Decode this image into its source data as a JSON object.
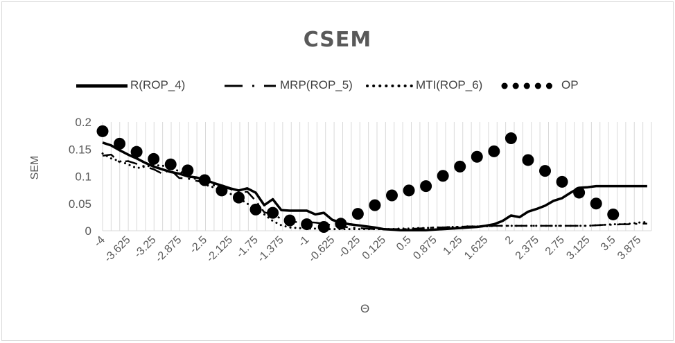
{
  "chart_data": {
    "type": "line",
    "title": "CSEM",
    "xlabel": "Θ",
    "ylabel": "SEM",
    "ylim": [
      0,
      0.2
    ],
    "yticks": [
      "0",
      "0.05",
      "0.1",
      "0.15",
      "0.2"
    ],
    "xtick_labels": [
      "-4",
      "-3.625",
      "-3.25",
      "-2.875",
      "-2.5",
      "-2.125",
      "-1.75",
      "-1.375",
      "-1",
      "-0.625",
      "-0.25",
      "0.125",
      "0.5",
      "0.875",
      "1.25",
      "1.625",
      "2",
      "2.375",
      "2.75",
      "3.125",
      "3.5",
      "3.875"
    ],
    "grid": "vertical",
    "legend": "top",
    "series": [
      {
        "name": "R(ROP_4)",
        "style": "solid",
        "x": [
          -4,
          -3.875,
          -3.75,
          -3.625,
          -3.5,
          -3.375,
          -3.25,
          -3.125,
          -3,
          -2.875,
          -2.75,
          -2.625,
          -2.5,
          -2.375,
          -2.25,
          -2.125,
          -2,
          -1.875,
          -1.75,
          -1.625,
          -1.5,
          -1.375,
          -1.25,
          -1.125,
          -1,
          -0.875,
          -0.75,
          -0.625,
          -0.5,
          -0.375,
          -0.25,
          -0.125,
          0,
          0.125,
          0.25,
          0.375,
          0.5,
          0.625,
          0.75,
          0.875,
          1,
          1.125,
          1.25,
          1.375,
          1.5,
          1.625,
          1.75,
          1.875,
          2,
          2.125,
          2.25,
          2.375,
          2.5,
          2.625,
          2.75,
          2.875,
          3,
          3.125,
          3.25,
          3.375,
          3.5,
          3.625,
          3.75,
          3.875,
          4
        ],
        "y": [
          0.162,
          0.157,
          0.148,
          0.14,
          0.133,
          0.125,
          0.118,
          0.113,
          0.108,
          0.105,
          0.1,
          0.098,
          0.094,
          0.088,
          0.083,
          0.078,
          0.074,
          0.078,
          0.07,
          0.047,
          0.058,
          0.038,
          0.037,
          0.037,
          0.037,
          0.03,
          0.033,
          0.02,
          0.015,
          0.012,
          0.01,
          0.008,
          0.006,
          0.003,
          0.002,
          0.001,
          0.001,
          0.001,
          0.001,
          0.002,
          0.003,
          0.004,
          0.005,
          0.006,
          0.007,
          0.009,
          0.012,
          0.018,
          0.028,
          0.025,
          0.035,
          0.04,
          0.046,
          0.055,
          0.06,
          0.07,
          0.079,
          0.08,
          0.082,
          0.082,
          0.082,
          0.082,
          0.082,
          0.082,
          0.082
        ]
      },
      {
        "name": "MRP(ROP_5)",
        "style": "dashdot",
        "x": [
          -4,
          -3.875,
          -3.75,
          -3.625,
          -3.5,
          -3.375,
          -3.25,
          -3.125,
          -3,
          -2.875,
          -2.75,
          -2.625,
          -2.5,
          -2.375,
          -2.25,
          -2.125,
          -2,
          -1.875,
          -1.75,
          -1.625,
          -1.5,
          -1.375,
          -1.25,
          -1.125,
          -1,
          -0.875,
          -0.75,
          -0.625,
          -0.5,
          -0.375,
          -0.25,
          -0.125,
          0,
          0.125,
          0.25,
          0.375,
          0.5,
          0.625,
          0.75,
          0.875,
          1,
          1.125,
          1.25,
          1.375,
          1.5,
          1.625,
          1.75,
          1.875,
          2,
          2.125,
          2.25,
          2.375,
          2.5,
          2.625,
          2.75,
          2.875,
          3,
          3.125,
          3.25,
          3.375,
          3.5,
          3.625,
          3.75,
          3.875,
          4
        ],
        "y": [
          0.138,
          0.14,
          0.126,
          0.128,
          0.123,
          0.118,
          0.113,
          0.105,
          0.112,
          0.097,
          0.096,
          0.092,
          0.088,
          0.084,
          0.08,
          0.077,
          0.07,
          0.072,
          0.055,
          0.034,
          0.03,
          0.022,
          0.016,
          0.016,
          0.016,
          0.015,
          0.013,
          0.01,
          0.008,
          0.006,
          0.005,
          0.004,
          0.003,
          0.003,
          0.003,
          0.003,
          0.003,
          0.004,
          0.005,
          0.006,
          0.006,
          0.007,
          0.007,
          0.008,
          0.008,
          0.008,
          0.009,
          0.009,
          0.009,
          0.009,
          0.009,
          0.009,
          0.009,
          0.009,
          0.009,
          0.009,
          0.009,
          0.009,
          0.01,
          0.011,
          0.011,
          0.012,
          0.012,
          0.013,
          0.013
        ]
      },
      {
        "name": "MTI(ROP_6)",
        "style": "dotted",
        "x": [
          -4,
          -3.875,
          -3.75,
          -3.625,
          -3.5,
          -3.375,
          -3.25,
          -3.125,
          -3,
          -2.875,
          -2.75,
          -2.625,
          -2.5,
          -2.375,
          -2.25,
          -2.125,
          -2,
          -1.875,
          -1.75,
          -1.625,
          -1.5,
          -1.375,
          -1.25,
          -1.125,
          -1,
          -0.875,
          -0.75,
          -0.625,
          -0.5,
          -0.375,
          -0.25,
          -0.125,
          0,
          0.125,
          0.25,
          0.375,
          0.5,
          0.625,
          0.75,
          0.875,
          1,
          1.125,
          1.25,
          1.375,
          1.5,
          1.625,
          1.75,
          1.875,
          2,
          2.125,
          2.25,
          2.375,
          2.5,
          2.625,
          2.75,
          2.875,
          3,
          3.125,
          3.25,
          3.375,
          3.5,
          3.625,
          3.75,
          3.875,
          4
        ],
        "y": [
          0.142,
          0.133,
          0.128,
          0.122,
          0.115,
          0.118,
          0.12,
          0.12,
          0.114,
          0.11,
          0.1,
          0.095,
          0.085,
          0.08,
          0.073,
          0.068,
          0.06,
          0.05,
          0.04,
          0.03,
          0.018,
          0.01,
          0.006,
          0.005,
          0.004,
          0.004,
          0.003,
          0.003,
          0.003,
          0.003,
          0.003,
          0.003,
          0.003,
          0.003,
          0.003,
          0.004,
          0.004,
          0.005,
          0.005,
          0.006,
          0.006,
          0.007,
          0.007,
          0.008,
          0.008,
          0.008,
          0.009,
          0.009,
          0.009,
          0.009,
          0.009,
          0.009,
          0.009,
          0.009,
          0.009,
          0.009,
          0.009,
          0.009,
          0.01,
          0.011,
          0.012,
          0.012,
          0.013,
          0.015,
          0.016
        ]
      },
      {
        "name": "OP",
        "style": "markers",
        "x": [
          -4,
          -3.75,
          -3.5,
          -3.25,
          -3,
          -2.75,
          -2.5,
          -2.25,
          -2,
          -1.75,
          -1.5,
          -1.25,
          -1,
          -0.75,
          -0.5,
          -0.25,
          0,
          0.25,
          0.5,
          0.75,
          1,
          1.25,
          1.5,
          1.75,
          2,
          2.25,
          2.5,
          2.75,
          3,
          3.25,
          3.5
        ],
        "y": [
          0.183,
          0.16,
          0.145,
          0.132,
          0.122,
          0.111,
          0.093,
          0.074,
          0.061,
          0.039,
          0.033,
          0.019,
          0.012,
          0.007,
          0.013,
          0.031,
          0.047,
          0.065,
          0.074,
          0.082,
          0.101,
          0.118,
          0.136,
          0.146,
          0.17,
          0.13,
          0.11,
          0.09,
          0.07,
          0.05,
          0.03
        ]
      }
    ]
  }
}
